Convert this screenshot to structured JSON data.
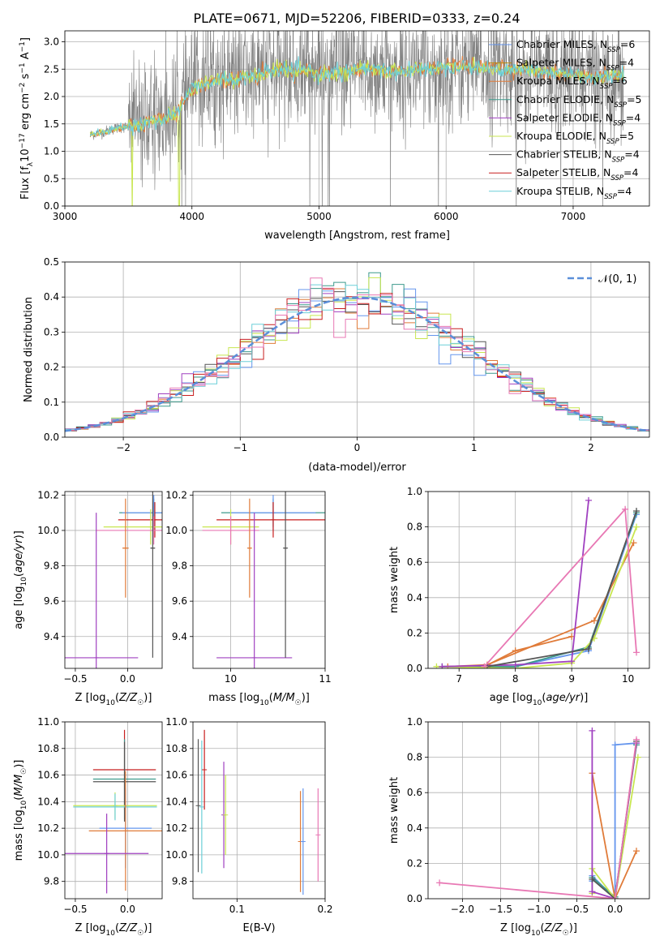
{
  "title": "PLATE=0671, MJD=52206, FIBERID=0333, z=0.24",
  "colors": {
    "chabrier_miles": "#6495ed",
    "salpeter_miles": "#b8860b",
    "kroupa_miles": "#e07b39",
    "chabrier_elodie": "#3c9a8c",
    "salpeter_elodie": "#a040c0",
    "kroupa_elodie": "#c8e650",
    "chabrier_stelib": "#555555",
    "salpeter_stelib": "#c81e1e",
    "kroupa_stelib": "#6ccfd8",
    "extra_pink": "#e878b4",
    "data_gray": "#808080",
    "normal_curve": "#5b8fd9"
  },
  "chart_data": [
    {
      "id": "spectrum",
      "type": "line",
      "xlabel": "wavelength [Angstrom, rest frame]",
      "ylabel": "Flux [f_λ 10^-17 erg cm^-2 s^-1 A^-1]",
      "xlim": [
        3000,
        7600
      ],
      "ylim": [
        0,
        3.2
      ],
      "xticks": [
        "3000",
        "4000",
        "5000",
        "6000",
        "7000"
      ],
      "yticks": [
        "0.0",
        "0.5",
        "1.0",
        "1.5",
        "2.0",
        "2.5",
        "3.0"
      ],
      "legend_position": "top-right",
      "legend": [
        {
          "label": "Chabrier MILES, N_SSP=6",
          "main": "Chabrier MILES, N",
          "sub": "SSP",
          "tail": "=6",
          "color": "#6495ed"
        },
        {
          "label": "Salpeter MILES, N_SSP=4",
          "main": "Salpeter MILES, N",
          "sub": "SSP",
          "tail": "=4",
          "color": "#b8860b"
        },
        {
          "label": "Kroupa MILES, N_SSP=6",
          "main": "Kroupa MILES, N",
          "sub": "SSP",
          "tail": "=6",
          "color": "#e07b39"
        },
        {
          "label": "Chabrier ELODIE, N_SSP=5",
          "main": "Chabrier ELODIE, N",
          "sub": "SSP",
          "tail": "=5",
          "color": "#3c9a8c"
        },
        {
          "label": "Salpeter ELODIE, N_SSP=4",
          "main": "Salpeter ELODIE, N",
          "sub": "SSP",
          "tail": "=4",
          "color": "#a040c0"
        },
        {
          "label": "Kroupa ELODIE, N_SSP=5",
          "main": "Kroupa ELODIE, N",
          "sub": "SSP",
          "tail": "=5",
          "color": "#c8e650"
        },
        {
          "label": "Chabrier STELIB, N_SSP=4",
          "main": "Chabrier STELIB, N",
          "sub": "SSP",
          "tail": "=4",
          "color": "#555555"
        },
        {
          "label": "Salpeter STELIB, N_SSP=4",
          "main": "Salpeter STELIB, N",
          "sub": "SSP",
          "tail": "=4",
          "color": "#c81e1e"
        },
        {
          "label": "Kroupa STELIB, N_SSP=4",
          "main": "Kroupa STELIB, N",
          "sub": "SSP",
          "tail": "=4",
          "color": "#6ccfd8"
        }
      ],
      "model_curve": {
        "x": [
          3200,
          3300,
          3400,
          3500,
          3600,
          3700,
          3800,
          3900,
          3950,
          4000,
          4100,
          4200,
          4300,
          4400,
          4500,
          4600,
          4700,
          4800,
          4900,
          5000,
          5200,
          5400,
          5600,
          5800,
          6000,
          6200,
          6400,
          6600,
          6800,
          7000,
          7200,
          7400
        ],
        "y": [
          1.3,
          1.35,
          1.42,
          1.45,
          1.5,
          1.55,
          1.6,
          1.75,
          2.0,
          2.15,
          2.25,
          2.3,
          2.3,
          2.35,
          2.35,
          2.45,
          2.5,
          2.45,
          2.5,
          2.4,
          2.45,
          2.5,
          2.45,
          2.5,
          2.55,
          2.55,
          2.5,
          2.5,
          2.45,
          2.4,
          2.35,
          2.4
        ]
      },
      "data_noise": {
        "x_start": 3200,
        "x_end": 7400,
        "quiet_until": 3500,
        "noise_amplitude_after": 0.55
      }
    },
    {
      "id": "residuals",
      "type": "line",
      "xlabel": "(data-model)/error",
      "ylabel": "Normed distribution",
      "xlim": [
        -2.5,
        2.5
      ],
      "ylim": [
        0,
        0.5
      ],
      "xticks": [
        "−2",
        "−1",
        "0",
        "1",
        "2"
      ],
      "yticks": [
        "0.0",
        "0.1",
        "0.2",
        "0.3",
        "0.4",
        "0.5"
      ],
      "legend_position": "top-right",
      "normal_label": "𝒩(0, 1)",
      "histogram_bin_width": 0.1
    },
    {
      "id": "age_vs_Z",
      "type": "scatter",
      "xlabel": "Z [log10(Z/Z☉)]",
      "ylabel": "age  [log10(age/yr)]",
      "xlim": [
        -0.6,
        0.33
      ],
      "ylim": [
        9.22,
        10.22
      ],
      "xticks": [
        "−0.5",
        "0.0"
      ],
      "yticks": [
        "9.4",
        "9.6",
        "9.8",
        "10.0",
        "10.2"
      ],
      "points": [
        {
          "x": 0.25,
          "y": 10.1,
          "xerr": 0.33,
          "yerr": 0.08,
          "color": "#3c9a8c"
        },
        {
          "x": 0.25,
          "y": 10.1,
          "xerr": 0.3,
          "yerr": 0.1,
          "color": "#6495ed"
        },
        {
          "x": 0.26,
          "y": 10.06,
          "xerr": 0.35,
          "yerr": 0.1,
          "color": "#c81e1e"
        },
        {
          "x": 0.22,
          "y": 10.02,
          "xerr": 0.45,
          "yerr": 0.1,
          "color": "#c8e650"
        },
        {
          "x": 0.25,
          "y": 10.0,
          "xerr": 0.55,
          "yerr": 0.08,
          "color": "#e878b4"
        },
        {
          "x": -0.3,
          "y": 9.28,
          "xerr": 0.4,
          "yerr": 0.82,
          "color": "#a040c0"
        },
        {
          "x": -0.02,
          "y": 9.9,
          "xerr": 0.03,
          "yerr": 0.28,
          "color": "#e07b39"
        },
        {
          "x": 0.24,
          "y": 9.9,
          "xerr": 0.02,
          "yerr": 0.62,
          "color": "#555555"
        }
      ]
    },
    {
      "id": "age_vs_mass",
      "type": "scatter",
      "xlabel": "mass [log10(M/M☉)]",
      "ylabel": "",
      "xlim": [
        9.6,
        11.0
      ],
      "ylim": [
        9.22,
        10.22
      ],
      "xticks": [
        "10",
        "11"
      ],
      "yticks": [
        "9.4",
        "9.6",
        "9.8",
        "10.0",
        "10.2"
      ],
      "points": [
        {
          "x": 10.45,
          "y": 10.1,
          "xerr": 0.55,
          "yerr": 0.08,
          "color": "#3c9a8c"
        },
        {
          "x": 10.45,
          "y": 10.1,
          "xerr": 0.45,
          "yerr": 0.1,
          "color": "#6495ed"
        },
        {
          "x": 10.45,
          "y": 10.06,
          "xerr": 0.6,
          "yerr": 0.1,
          "color": "#c81e1e"
        },
        {
          "x": 10.0,
          "y": 10.02,
          "xerr": 0.3,
          "yerr": 0.1,
          "color": "#c8e650"
        },
        {
          "x": 10.0,
          "y": 10.0,
          "xerr": 0.3,
          "yerr": 0.08,
          "color": "#e878b4"
        },
        {
          "x": 10.25,
          "y": 9.28,
          "xerr": 0.4,
          "yerr": 0.82,
          "color": "#a040c0"
        },
        {
          "x": 10.2,
          "y": 9.9,
          "xerr": 0.02,
          "yerr": 0.28,
          "color": "#e07b39"
        },
        {
          "x": 10.58,
          "y": 9.9,
          "xerr": 0.02,
          "yerr": 0.62,
          "color": "#555555"
        }
      ]
    },
    {
      "id": "weight_vs_age",
      "type": "line",
      "xlabel": "age  [log10(age/yr)]",
      "ylabel": "mass weight",
      "xlim": [
        6.45,
        10.38
      ],
      "ylim": [
        0,
        1.0
      ],
      "xticks": [
        "7",
        "8",
        "9",
        "10"
      ],
      "yticks": [
        "0.0",
        "0.2",
        "0.4",
        "0.6",
        "0.8",
        "1.0"
      ],
      "series": [
        {
          "color": "#6495ed",
          "x": [
            6.7,
            7.5,
            8.0,
            9.3,
            10.15
          ],
          "y": [
            0.01,
            0.01,
            0.01,
            0.1,
            0.87
          ]
        },
        {
          "color": "#3c9a8c",
          "x": [
            6.7,
            7.5,
            8.0,
            9.3,
            10.15
          ],
          "y": [
            0.01,
            0.01,
            0.01,
            0.12,
            0.88
          ]
        },
        {
          "color": "#e07b39",
          "x": [
            6.8,
            7.5,
            9.4,
            10.1
          ],
          "y": [
            0.01,
            0.02,
            0.27,
            0.71
          ]
        },
        {
          "color": "#e07b39",
          "x": [
            7.45,
            8.0,
            9.0
          ],
          "y": [
            0.01,
            0.1,
            0.18
          ]
        },
        {
          "color": "#c8e650",
          "x": [
            6.6,
            8.0,
            9.0,
            9.4,
            10.15
          ],
          "y": [
            0.01,
            0.0,
            0.03,
            0.17,
            0.8
          ]
        },
        {
          "color": "#a040c0",
          "x": [
            6.7,
            8.0,
            9.0,
            9.3
          ],
          "y": [
            0.01,
            0.02,
            0.04,
            0.95
          ]
        },
        {
          "color": "#555555",
          "x": [
            7.5,
            9.3,
            10.15
          ],
          "y": [
            0.01,
            0.11,
            0.89
          ]
        },
        {
          "color": "#e878b4",
          "x": [
            7.45,
            9.95,
            10.15
          ],
          "y": [
            0.01,
            0.9,
            0.09
          ]
        }
      ]
    },
    {
      "id": "mass_vs_Z",
      "type": "scatter",
      "xlabel": "Z [log10(Z/Z☉)]",
      "ylabel": "mass [log10(M/M☉)]",
      "xlim": [
        -0.6,
        0.33
      ],
      "ylim": [
        9.67,
        11.0
      ],
      "xticks": [
        "−0.5",
        "0.0"
      ],
      "yticks": [
        "9.8",
        "10.0",
        "10.2",
        "10.4",
        "10.6",
        "10.8",
        "11.0"
      ],
      "points": [
        {
          "x": -0.03,
          "y": 10.64,
          "xerr": 0.3,
          "yerr": 0.3,
          "color": "#c81e1e"
        },
        {
          "x": -0.03,
          "y": 10.57,
          "xerr": 0.3,
          "yerr": 0.3,
          "color": "#3c9a8c"
        },
        {
          "x": -0.03,
          "y": 10.55,
          "xerr": 0.3,
          "yerr": 0.3,
          "color": "#555555"
        },
        {
          "x": -0.12,
          "y": 10.37,
          "xerr": 0.4,
          "yerr": 0.1,
          "color": "#c8e650"
        },
        {
          "x": -0.12,
          "y": 10.36,
          "xerr": 0.4,
          "yerr": 0.1,
          "color": "#6ccfd8"
        },
        {
          "x": -0.02,
          "y": 10.2,
          "xerr": 0.25,
          "yerr": 0.3,
          "color": "#6495ed"
        },
        {
          "x": -0.02,
          "y": 10.18,
          "xerr": 0.35,
          "yerr": 0.45,
          "color": "#e07b39"
        },
        {
          "x": -0.2,
          "y": 10.01,
          "xerr": 0.4,
          "yerr": 0.3,
          "color": "#a040c0"
        }
      ]
    },
    {
      "id": "mass_vs_ebv",
      "type": "scatter",
      "xlabel": "E(B-V)",
      "ylabel": "",
      "xlim": [
        0.05,
        0.2
      ],
      "ylim": [
        9.67,
        11.0
      ],
      "xticks": [
        "0.1",
        "0.2"
      ],
      "yticks": [
        "9.8",
        "10.0",
        "10.2",
        "10.4",
        "10.6",
        "10.8",
        "11.0"
      ],
      "points": [
        {
          "x": 0.056,
          "y": 10.37,
          "yerr": 0.5,
          "color": "#555555"
        },
        {
          "x": 0.06,
          "y": 10.36,
          "yerr": 0.5,
          "color": "#6ccfd8"
        },
        {
          "x": 0.063,
          "y": 10.64,
          "yerr": 0.3,
          "color": "#c81e1e"
        },
        {
          "x": 0.085,
          "y": 10.3,
          "yerr": 0.4,
          "color": "#a040c0"
        },
        {
          "x": 0.087,
          "y": 10.3,
          "yerr": 0.3,
          "color": "#c8e650"
        },
        {
          "x": 0.172,
          "y": 10.1,
          "yerr": 0.38,
          "color": "#e07b39"
        },
        {
          "x": 0.175,
          "y": 10.1,
          "yerr": 0.4,
          "color": "#6495ed"
        },
        {
          "x": 0.192,
          "y": 10.15,
          "yerr": 0.35,
          "color": "#e878b4"
        }
      ]
    },
    {
      "id": "weight_vs_Z",
      "type": "line",
      "xlabel": "Z [log10(Z/Z☉)]",
      "ylabel": "mass weight",
      "xlim": [
        -2.45,
        0.45
      ],
      "ylim": [
        0,
        1.0
      ],
      "xticks": [
        "−2.0",
        "−1.5",
        "−1.0",
        "−0.5",
        "0.0"
      ],
      "yticks": [
        "0.0",
        "0.2",
        "0.4",
        "0.6",
        "0.8",
        "1.0"
      ],
      "series": [
        {
          "color": "#6495ed",
          "x": [
            -0.3,
            -0.3,
            0.0,
            0.0,
            0.28
          ],
          "y": [
            0.1,
            0.13,
            0.0,
            0.87,
            0.88
          ]
        },
        {
          "color": "#3c9a8c",
          "x": [
            -0.3,
            0.0,
            0.28
          ],
          "y": [
            0.12,
            0.01,
            0.87
          ]
        },
        {
          "color": "#e07b39",
          "x": [
            -0.3,
            0.0,
            0.28
          ],
          "y": [
            0.71,
            0.0,
            0.27
          ]
        },
        {
          "color": "#c8e650",
          "x": [
            -0.3,
            -0.3,
            0.0,
            0.3
          ],
          "y": [
            0.03,
            0.17,
            0.0,
            0.8
          ]
        },
        {
          "color": "#a040c0",
          "x": [
            -0.3,
            -0.3,
            0.0,
            0.28
          ],
          "y": [
            0.95,
            0.04,
            0.0,
            0.88
          ]
        },
        {
          "color": "#555555",
          "x": [
            -0.3,
            0.0,
            0.28
          ],
          "y": [
            0.11,
            0.0,
            0.89
          ]
        },
        {
          "color": "#e878b4",
          "x": [
            -2.3,
            0.0,
            0.28
          ],
          "y": [
            0.09,
            0.0,
            0.9
          ]
        }
      ]
    }
  ]
}
